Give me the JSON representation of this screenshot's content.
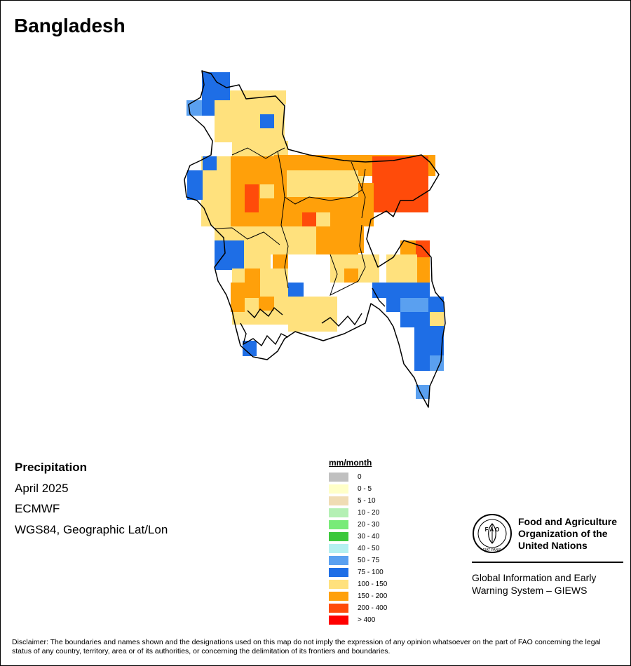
{
  "title": "Bangladesh",
  "info": {
    "variable": "Precipitation",
    "period": "April 2025",
    "source": "ECMWF",
    "projection": "WGS84, Geographic Lat/Lon"
  },
  "legend": {
    "title": "mm/month",
    "classes": [
      {
        "label": "0",
        "color": "#c0c0c0"
      },
      {
        "label": "0 - 5",
        "color": "#ffffc8"
      },
      {
        "label": "5 - 10",
        "color": "#f0dcb4"
      },
      {
        "label": "10 - 20",
        "color": "#b4f0b4"
      },
      {
        "label": "20 - 30",
        "color": "#78eb78"
      },
      {
        "label": "30 - 40",
        "color": "#3cc83c"
      },
      {
        "label": "40 - 50",
        "color": "#b4f0f0"
      },
      {
        "label": "50 - 75",
        "color": "#5aa0f0"
      },
      {
        "label": "75 - 100",
        "color": "#1e6ee6"
      },
      {
        "label": "100 - 150",
        "color": "#ffe17d"
      },
      {
        "label": "150 - 200",
        "color": "#ffa00a"
      },
      {
        "label": "200 - 400",
        "color": "#ff4b0a"
      },
      {
        "label": "> 400",
        "color": "#ff0000"
      }
    ]
  },
  "logo": {
    "name_lines": [
      "Food and Agriculture",
      "Organization of the",
      "United Nations"
    ],
    "emblem_letters": "F A O",
    "emblem_motto": "FIAT PANIS",
    "program_lines": [
      "Global Information and Early",
      "Warning System – GIEWS"
    ]
  },
  "disclaimer": "Disclaimer: The boundaries and names shown and the designations used on this map do not imply the expression of any opinion whatsoever on the part of FAO concerning the legal status of any country, territory, area or of its authorities, or concerning the delimitation of its frontiers and boundaries.",
  "map_colors": {
    "blue_dark": "#1e6ee6",
    "blue_light": "#5aa0f0",
    "yellow": "#ffe17d",
    "orange": "#ffa00a",
    "red_orange": "#ff4b0a",
    "red": "#ff0000"
  }
}
